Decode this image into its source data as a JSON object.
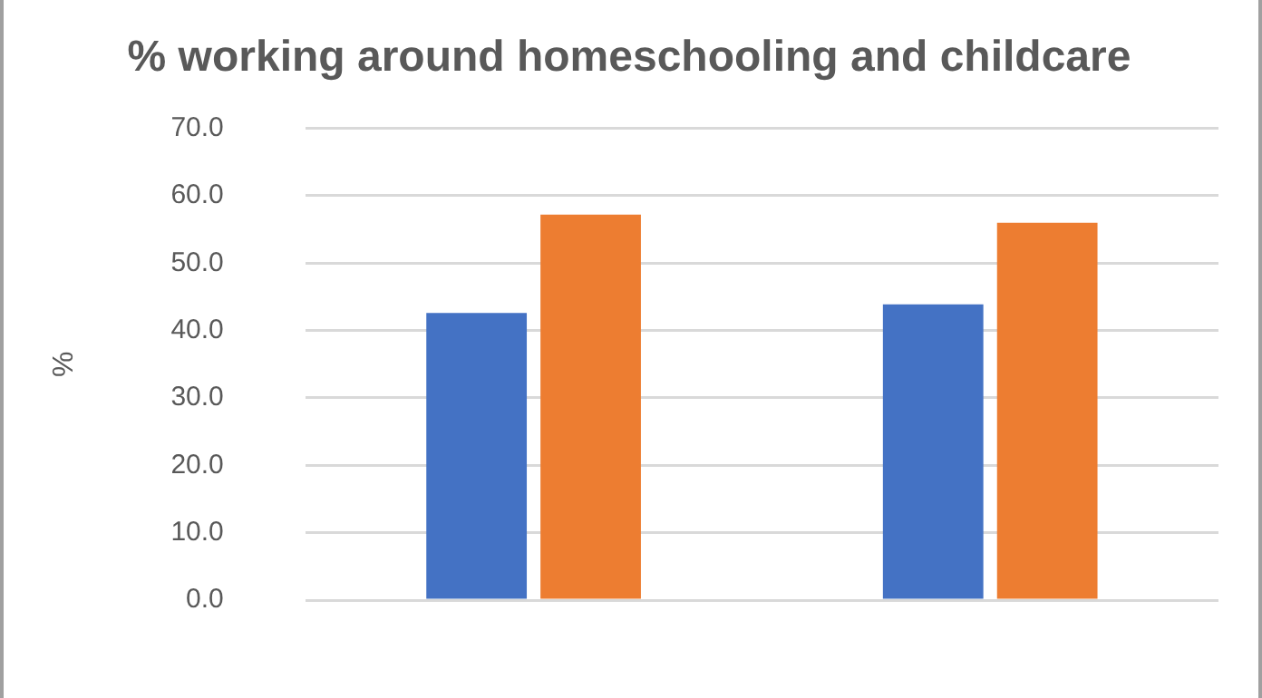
{
  "chart_data": {
    "type": "bar",
    "title": "% working around homeschooling and childcare",
    "ylabel": "%",
    "categories": [
      null,
      null
    ],
    "series": [
      {
        "color": "#4472c4",
        "values": [
          42.6,
          43.9
        ]
      },
      {
        "color": "#ed7d31",
        "values": [
          57.2,
          56.0
        ]
      }
    ],
    "ylim": [
      0,
      70
    ],
    "yticks": [
      {
        "value": 0,
        "label": "0.0"
      },
      {
        "value": 10,
        "label": "10.0"
      },
      {
        "value": 20,
        "label": "20.0"
      },
      {
        "value": 30,
        "label": "30.0"
      },
      {
        "value": 40,
        "label": "40.0"
      },
      {
        "value": 50,
        "label": "50.0"
      },
      {
        "value": 60,
        "label": "60.0"
      },
      {
        "value": 70,
        "label": "70.0"
      }
    ],
    "grid": "y",
    "legend": false
  }
}
